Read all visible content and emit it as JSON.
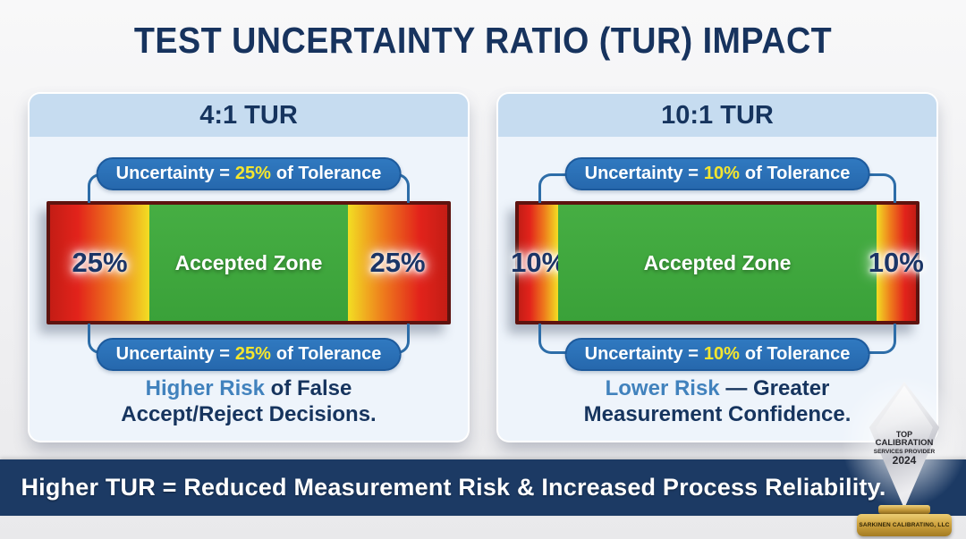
{
  "page": {
    "title": "TEST UNCERTAINTY RATIO (TUR) IMPACT",
    "footer": "Higher TUR = Reduced Measurement Risk & Increased Process Reliability."
  },
  "panels": [
    {
      "header": "4:1 TUR",
      "uncertainty_top": {
        "prefix": "Uncertainty =",
        "percent": "25%",
        "suffix": "of Tolerance"
      },
      "uncertainty_bottom": {
        "prefix": "Uncertainty =",
        "percent": "25%",
        "suffix": "of Tolerance"
      },
      "bar": {
        "left_zone_label": "25%",
        "center_label": "Accepted Zone",
        "right_zone_label": "25%",
        "zone_percent": 25
      },
      "risk": {
        "line1_highlight": "Higher Risk",
        "line1_rest": " of False",
        "line2": "Accept/Reject Decisions."
      }
    },
    {
      "header": "10:1 TUR",
      "uncertainty_top": {
        "prefix": "Uncertainty =",
        "percent": "10%",
        "suffix": "of Tolerance"
      },
      "uncertainty_bottom": {
        "prefix": "Uncertainty =",
        "percent": "10%",
        "suffix": "of Tolerance"
      },
      "bar": {
        "left_zone_label": "10%",
        "center_label": "Accepted Zone",
        "right_zone_label": "10%",
        "zone_percent": 10
      },
      "risk": {
        "line1_highlight": "Lower Risk",
        "line1_rest": " — Greater",
        "line2": "Measurement Confidence."
      }
    }
  ],
  "award": {
    "lines": [
      "TOP",
      "CALIBRATION",
      "SERVICES PROVIDER",
      "2024"
    ],
    "plate": "SARKINEN CALIBRATING, LLC"
  },
  "colors": {
    "navy_text": "#17335e",
    "risk_highlight_blue": "#4182bd",
    "pill_blue": "#2a6fb5",
    "pill_percent_yellow": "#f5e62e",
    "bar_green": "#3aa139",
    "bar_red": "#e2231b",
    "bar_yellow": "#f2de23",
    "bar_border_maroon": "#5e130f",
    "card_header_blue": "#c6dcf0",
    "card_body_blue": "#eef4fb",
    "footer_band_navy": "#1c3a64",
    "gold": "#cfa440"
  }
}
